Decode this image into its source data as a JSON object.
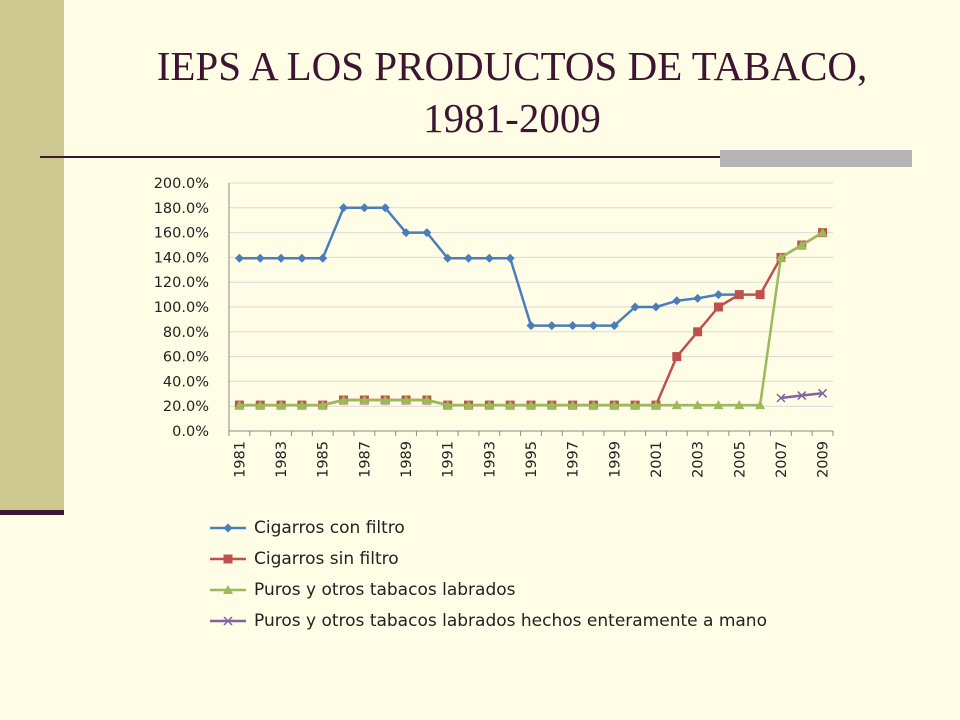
{
  "slide": {
    "title_line1": "IEPS A LOS PRODUCTOS DE TABACO,",
    "title_line2": "1981-2009"
  },
  "colors": {
    "background": "#fffde5",
    "sidebar": "#cdc88f",
    "title": "#3d1530",
    "gridline": "#d9d9d9"
  },
  "chart_data": {
    "type": "line",
    "title": "",
    "xlabel": "",
    "ylabel": "",
    "ylim": [
      0,
      200
    ],
    "y_tick_step": 20,
    "y_tick_format": "percent_one_decimal",
    "grid": true,
    "legend_position": "bottom",
    "x": [
      1981,
      1982,
      1983,
      1984,
      1985,
      1986,
      1987,
      1988,
      1989,
      1990,
      1991,
      1992,
      1993,
      1994,
      1995,
      1996,
      1997,
      1998,
      1999,
      2000,
      2001,
      2002,
      2003,
      2004,
      2005,
      2006,
      2007,
      2008,
      2009
    ],
    "x_tick_labels": [
      "1981",
      "1983",
      "1985",
      "1987",
      "1989",
      "1991",
      "1993",
      "1995",
      "1997",
      "1999",
      "2001",
      "2003",
      "2005",
      "2007",
      "2009"
    ],
    "series": [
      {
        "name": "Cigarros con filtro",
        "color": "#4a7ebb",
        "marker": "diamond",
        "values": [
          139.3,
          139.3,
          139.3,
          139.3,
          139.3,
          180,
          180,
          180,
          160,
          160,
          139.3,
          139.3,
          139.3,
          139.3,
          85,
          85,
          85,
          85,
          85,
          100,
          100,
          105,
          107,
          110,
          110,
          null,
          null,
          null,
          null
        ]
      },
      {
        "name": "Cigarros sin filtro",
        "color": "#c0504d",
        "marker": "square",
        "values": [
          20.9,
          20.9,
          20.9,
          20.9,
          20.9,
          25,
          25,
          25,
          25,
          25,
          20.9,
          20.9,
          20.9,
          20.9,
          20.9,
          20.9,
          20.9,
          20.9,
          20.9,
          20.9,
          20.9,
          60,
          80,
          100,
          110,
          110,
          140,
          150,
          160
        ]
      },
      {
        "name": "Puros y otros tabacos labrados",
        "color": "#9bbb59",
        "marker": "triangle",
        "values": [
          20.9,
          20.9,
          20.9,
          20.9,
          20.9,
          25,
          25,
          25,
          25,
          25,
          20.9,
          20.9,
          20.9,
          20.9,
          20.9,
          20.9,
          20.9,
          20.9,
          20.9,
          20.9,
          20.9,
          20.9,
          20.9,
          20.9,
          20.9,
          20.9,
          140,
          150,
          160
        ]
      },
      {
        "name": "Puros y otros tabacos labrados hechos enteramente a mano",
        "color": "#8064a2",
        "marker": "x",
        "values": [
          null,
          null,
          null,
          null,
          null,
          null,
          null,
          null,
          null,
          null,
          null,
          null,
          null,
          null,
          null,
          null,
          null,
          null,
          null,
          null,
          null,
          null,
          null,
          null,
          null,
          null,
          26.6,
          28.6,
          30.4
        ]
      }
    ]
  }
}
